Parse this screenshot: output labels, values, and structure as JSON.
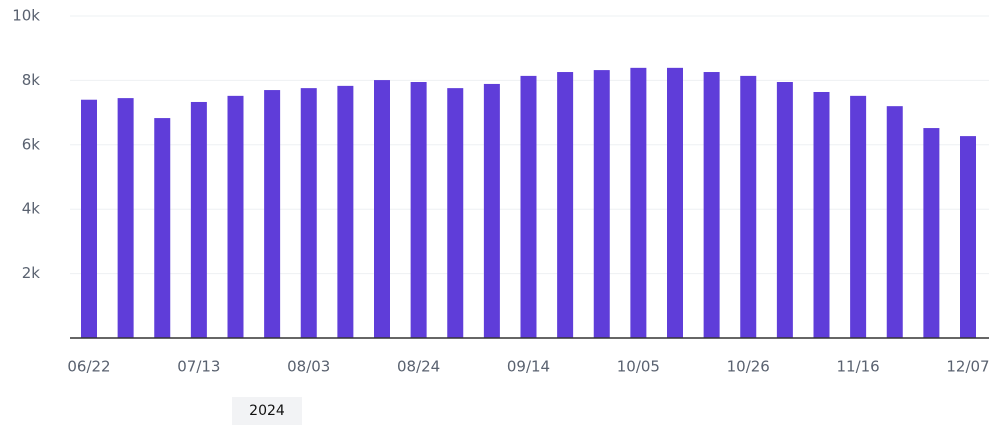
{
  "chart_data": {
    "type": "bar",
    "categories": [
      "06/22",
      null,
      null,
      "07/13",
      null,
      null,
      "08/03",
      null,
      null,
      "08/24",
      null,
      null,
      "09/14",
      null,
      null,
      "10/05",
      null,
      null,
      "10/26",
      null,
      null,
      "11/16",
      null,
      null,
      "12/07"
    ],
    "values": [
      7400,
      7450,
      6830,
      7330,
      7520,
      7700,
      7760,
      7830,
      8010,
      7950,
      7760,
      7890,
      8140,
      8260,
      8320,
      8390,
      8390,
      8260,
      8140,
      7950,
      7640,
      7520,
      7200,
      6520,
      6270
    ],
    "color": "#5f3dd9",
    "ylim": [
      0,
      10000
    ],
    "yticks": [
      {
        "value": 2000,
        "label": "2k"
      },
      {
        "value": 4000,
        "label": "4k"
      },
      {
        "value": 6000,
        "label": "6k"
      },
      {
        "value": 8000,
        "label": "8k"
      },
      {
        "value": 10000,
        "label": "10k"
      }
    ],
    "grid": true,
    "annotation": "2024"
  }
}
